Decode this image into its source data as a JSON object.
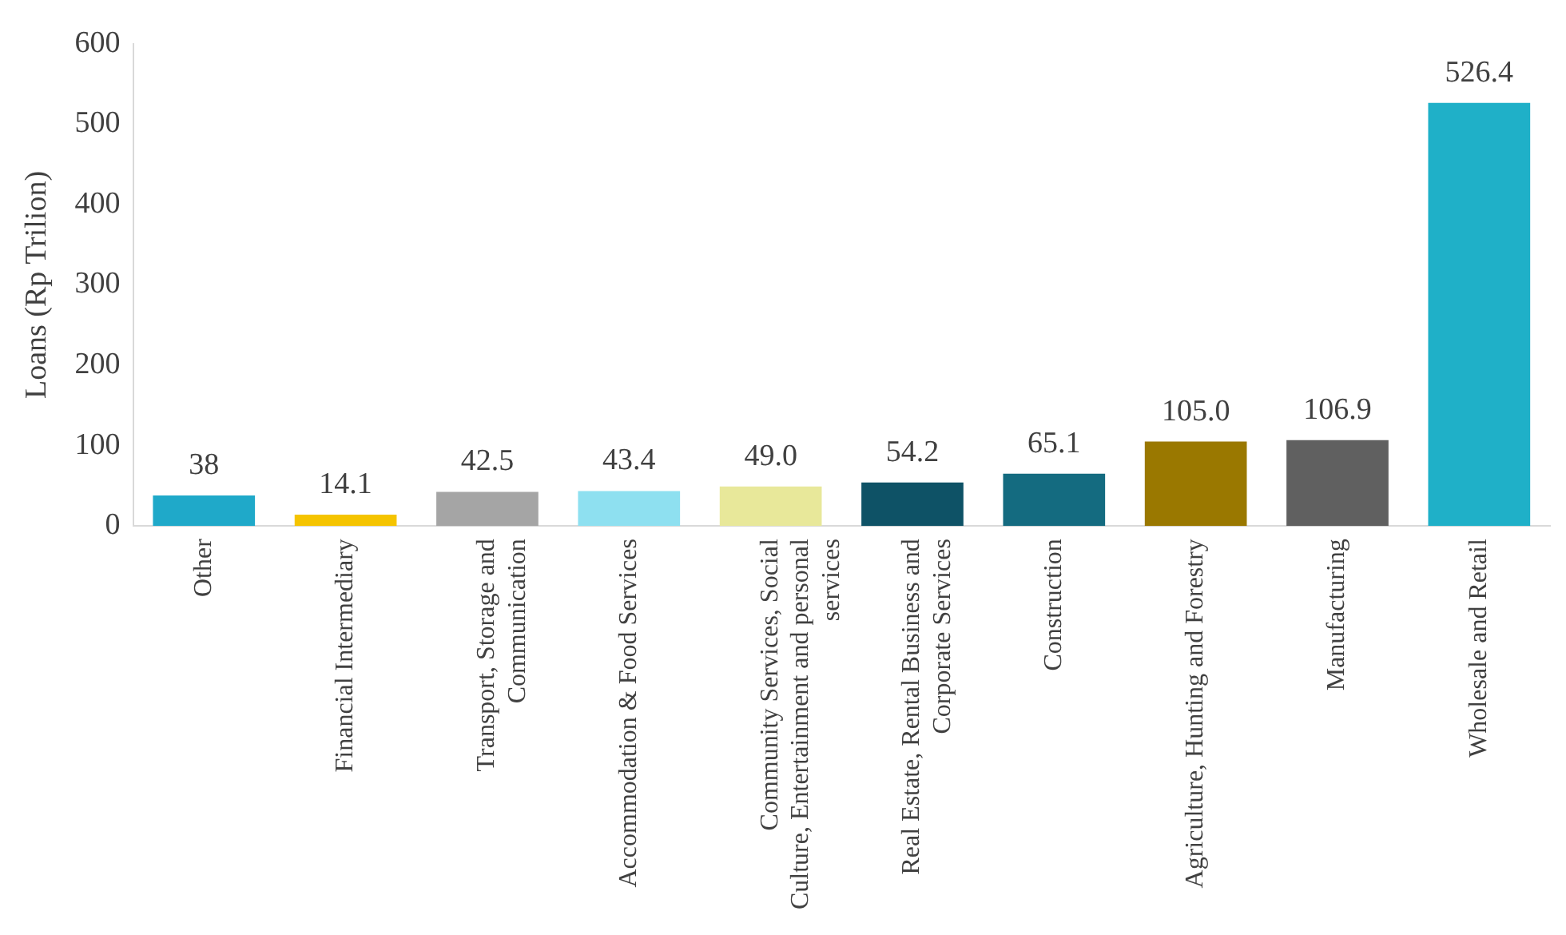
{
  "chart_data": {
    "type": "bar",
    "ylabel": "Loans (Rp Trilion)",
    "categories": [
      "Other",
      "Financial Intermediary",
      "Transport, Storage and Communication",
      "Accommodation & Food Services",
      "Community Services, Social Culture, Entertainment and personal services",
      "Real Estate, Rental Business and Corporate Services",
      "Construction",
      "Agriculture, Hunting and Forestry",
      "Manufacturing",
      "Wholesale and Retail"
    ],
    "values": [
      38,
      14.1,
      42.5,
      43.4,
      49.0,
      54.2,
      65.1,
      105.0,
      106.9,
      526.4
    ],
    "value_labels": [
      "38",
      "14.1",
      "42.5",
      "43.4",
      "49.0",
      "54.2",
      "65.1",
      "105.0",
      "106.9",
      "526.4"
    ],
    "colors": [
      "#1fa9c9",
      "#f5c400",
      "#a5a5a5",
      "#8ee0f0",
      "#e8e89a",
      "#0e5266",
      "#146b80",
      "#9a7800",
      "#606060",
      "#1fb0c8"
    ],
    "ylim": [
      0,
      600
    ],
    "yticks": [
      0,
      100,
      200,
      300,
      400,
      500,
      600
    ],
    "grid": false,
    "legend": false
  }
}
